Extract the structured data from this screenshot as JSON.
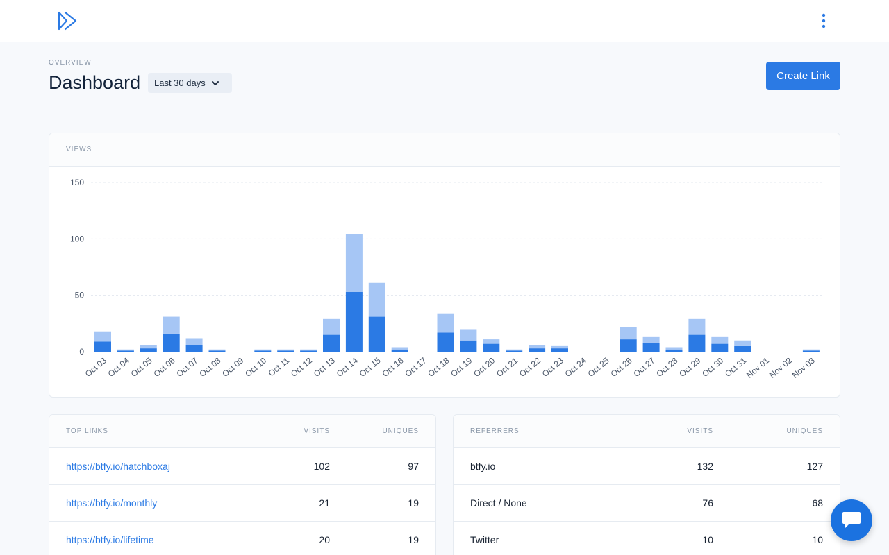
{
  "header": {
    "logo_icon": "play-arrows-logo-icon",
    "menu_icon": "kebab-menu-icon"
  },
  "page": {
    "overline": "OVERVIEW",
    "title": "Dashboard",
    "range_label": "Last 30 days",
    "create_label": "Create Link"
  },
  "views": {
    "title": "VIEWS",
    "chart_data": {
      "type": "bar",
      "stacked": true,
      "ylim": [
        0,
        150
      ],
      "yticks": [
        0,
        50,
        100,
        150
      ],
      "grid": true,
      "categories": [
        "Oct 03",
        "Oct 04",
        "Oct 05",
        "Oct 06",
        "Oct 07",
        "Oct 08",
        "Oct 09",
        "Oct 10",
        "Oct 11",
        "Oct 12",
        "Oct 13",
        "Oct 14",
        "Oct 15",
        "Oct 16",
        "Oct 17",
        "Oct 18",
        "Oct 19",
        "Oct 20",
        "Oct 21",
        "Oct 22",
        "Oct 23",
        "Oct 24",
        "Oct 25",
        "Oct 26",
        "Oct 27",
        "Oct 28",
        "Oct 29",
        "Oct 30",
        "Oct 31",
        "Nov 01",
        "Nov 02",
        "Nov 03"
      ],
      "series": [
        {
          "color": "#2b7ae4",
          "values": [
            9,
            1,
            3,
            16,
            6,
            1,
            0,
            1,
            1,
            1,
            15,
            53,
            31,
            2,
            0,
            17,
            10,
            7,
            1,
            3,
            3,
            0,
            0,
            11,
            8,
            2,
            15,
            7,
            5,
            0,
            0,
            1
          ]
        },
        {
          "color": "#a6c6f5",
          "values": [
            9,
            1,
            3,
            15,
            6,
            1,
            0,
            1,
            1,
            1,
            14,
            51,
            30,
            2,
            0,
            17,
            10,
            4,
            1,
            3,
            2,
            0,
            0,
            11,
            5,
            2,
            14,
            6,
            5,
            0,
            0,
            1
          ]
        }
      ]
    }
  },
  "top_links": {
    "headers": [
      "TOP LINKS",
      "VISITS",
      "UNIQUES"
    ],
    "rows": [
      [
        "https://btfy.io/hatchboxaj",
        "102",
        "97"
      ],
      [
        "https://btfy.io/monthly",
        "21",
        "19"
      ],
      [
        "https://btfy.io/lifetime",
        "20",
        "19"
      ]
    ]
  },
  "referrers": {
    "headers": [
      "REFERRERS",
      "VISITS",
      "UNIQUES"
    ],
    "rows": [
      [
        "btfy.io",
        "132",
        "127"
      ],
      [
        "Direct / None",
        "76",
        "68"
      ],
      [
        "Twitter",
        "10",
        "10"
      ]
    ]
  },
  "chat": {
    "icon": "chat-bubble-icon"
  }
}
